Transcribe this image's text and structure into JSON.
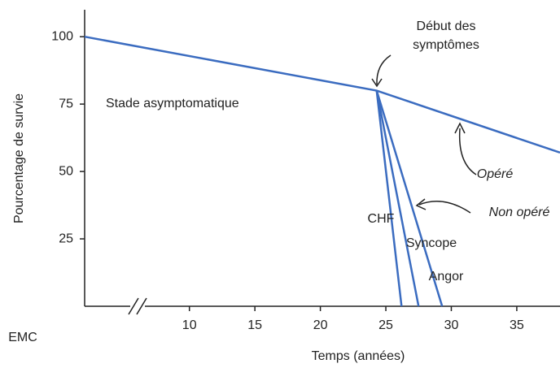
{
  "chart_data": {
    "type": "line",
    "ylabel": "Pourcentage de survie",
    "xlabel": "Temps (années)",
    "xlim": [
      2,
      38.3
    ],
    "xticks": [
      10,
      15,
      20,
      25,
      30,
      35
    ],
    "ylim": [
      0,
      110
    ],
    "yticks": [
      25,
      50,
      75,
      100
    ],
    "grid": false,
    "color": "#3b6cc0",
    "series": [
      {
        "name": "Opéré",
        "x": [
          2,
          24.3,
          38.3
        ],
        "values": [
          100,
          80,
          57
        ]
      },
      {
        "name": "CHF",
        "x": [
          24.3,
          26.2
        ],
        "values": [
          80,
          0
        ]
      },
      {
        "name": "Syncope",
        "x": [
          24.3,
          27.5
        ],
        "values": [
          80,
          0
        ]
      },
      {
        "name": "Angor",
        "x": [
          24.3,
          29.3
        ],
        "values": [
          80,
          0
        ]
      }
    ],
    "annotations": {
      "onset": [
        "Début des",
        "symptômes"
      ],
      "asymptomatic": "Stade asymptomatique",
      "unoperated": "Non opéré",
      "logo": "EMC"
    }
  }
}
